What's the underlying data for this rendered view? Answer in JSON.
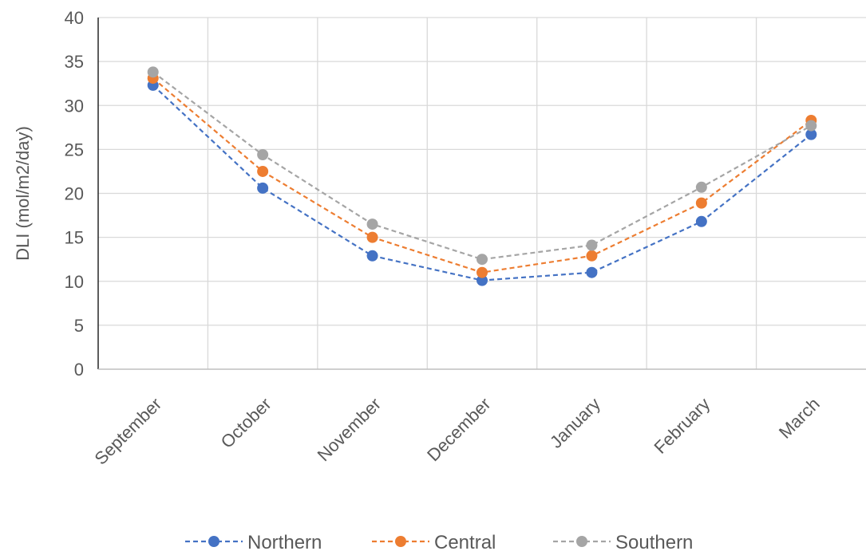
{
  "chart_data": {
    "type": "line",
    "title": "",
    "xlabel": "",
    "ylabel": "DLI (mol/m2/day)",
    "categories": [
      "September",
      "October",
      "November",
      "December",
      "January",
      "February",
      "March"
    ],
    "ylim": [
      0,
      40
    ],
    "yticks": [
      0,
      5,
      10,
      15,
      20,
      25,
      30,
      35,
      40
    ],
    "grid": true,
    "legend_position": "bottom",
    "line_style": "dashed",
    "series": [
      {
        "name": "Northern",
        "color": "#4472C4",
        "values": [
          32.3,
          20.6,
          12.9,
          10.1,
          11.0,
          16.8,
          26.7
        ]
      },
      {
        "name": "Central",
        "color": "#ED7D31",
        "values": [
          33.1,
          22.5,
          15.0,
          11.0,
          12.9,
          18.9,
          28.3
        ]
      },
      {
        "name": "Southern",
        "color": "#A5A5A5",
        "values": [
          33.8,
          24.4,
          16.5,
          12.5,
          14.1,
          20.7,
          27.7
        ]
      }
    ]
  }
}
